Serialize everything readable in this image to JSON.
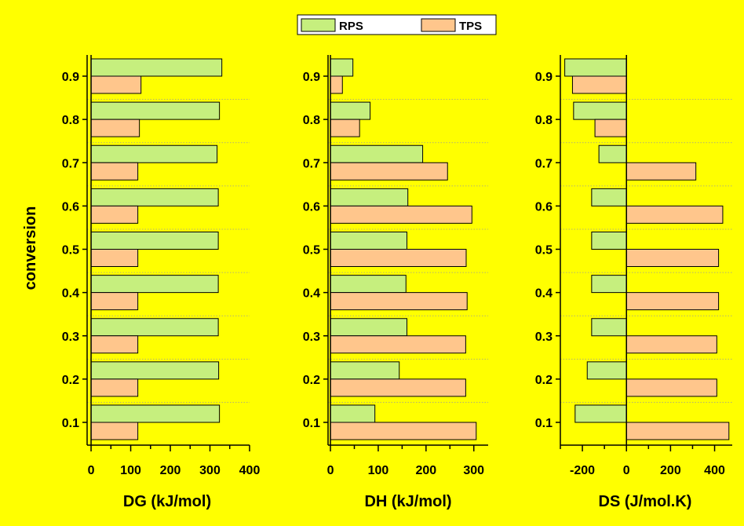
{
  "chart_data": [
    {
      "type": "bar",
      "orientation": "horizontal",
      "categories": [
        "0.1",
        "0.2",
        "0.3",
        "0.4",
        "0.5",
        "0.6",
        "0.7",
        "0.8",
        "0.9"
      ],
      "series": [
        {
          "name": "RPS",
          "values": [
            324,
            322,
            321,
            321,
            321,
            321,
            318,
            324,
            330
          ]
        },
        {
          "name": "TPS",
          "values": [
            118,
            118,
            118,
            118,
            118,
            118,
            118,
            122,
            126
          ]
        }
      ],
      "xlabel": "DG (kJ/mol)",
      "ylabel": "conversion",
      "xlim": [
        -10,
        400
      ],
      "xticks": [
        "0",
        "100",
        "200",
        "300",
        "400"
      ]
    },
    {
      "type": "bar",
      "orientation": "horizontal",
      "categories": [
        "0.1",
        "0.2",
        "0.3",
        "0.4",
        "0.5",
        "0.6",
        "0.7",
        "0.8",
        "0.9"
      ],
      "series": [
        {
          "name": "RPS",
          "values": [
            93,
            144,
            160,
            158,
            160,
            162,
            193,
            83,
            47
          ]
        },
        {
          "name": "TPS",
          "values": [
            305,
            283,
            283,
            286,
            284,
            296,
            245,
            61,
            25
          ]
        }
      ],
      "xlabel": "DH (kJ/mol)",
      "ylabel": "",
      "xlim": [
        -5,
        330
      ],
      "xticks": [
        "0",
        "100",
        "200",
        "300"
      ]
    },
    {
      "type": "bar",
      "orientation": "horizontal",
      "categories": [
        "0.1",
        "0.2",
        "0.3",
        "0.4",
        "0.5",
        "0.6",
        "0.7",
        "0.8",
        "0.9"
      ],
      "series": [
        {
          "name": "RPS",
          "values": [
            -233,
            -178,
            -158,
            -158,
            -158,
            -158,
            -125,
            -240,
            -280
          ]
        },
        {
          "name": "TPS",
          "values": [
            465,
            410,
            410,
            418,
            418,
            437,
            315,
            -143,
            -245
          ]
        }
      ],
      "xlabel": "DS (J/mol.K)",
      "ylabel": "",
      "xlim": [
        -300,
        480
      ],
      "xticks": [
        "-200",
        "0",
        "200",
        "400"
      ]
    }
  ],
  "legend": {
    "items": [
      {
        "label": "RPS",
        "color": "#c6ef7e"
      },
      {
        "label": "TPS",
        "color": "#ffc68c"
      }
    ],
    "placement": "top-center"
  },
  "colors": {
    "background": "#ffff00",
    "rps": "#c6ef7e",
    "tps": "#ffc68c"
  }
}
